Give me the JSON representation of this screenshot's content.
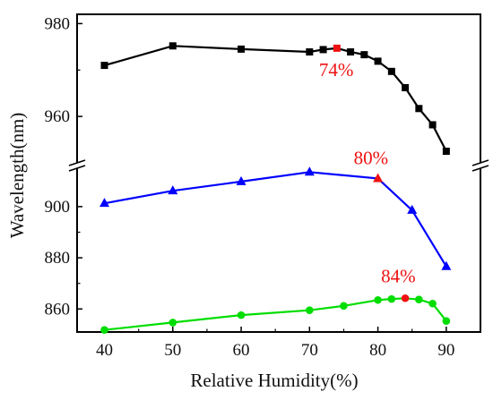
{
  "chart_data": {
    "type": "line",
    "xlabel": "Relative Humidity(%)",
    "ylabel": "Wavelength(nm)",
    "xlim": [
      36,
      95
    ],
    "x_ticks": [
      40,
      50,
      60,
      70,
      80,
      90
    ],
    "y_ticks_upper": [
      960,
      980
    ],
    "y_ticks_lower": [
      860,
      880,
      900
    ],
    "y_axis_break": {
      "lower_range": [
        851,
        915
      ],
      "upper_range": [
        950,
        982
      ]
    },
    "grid": false,
    "legend": "none",
    "series": [
      {
        "color": "#000000",
        "marker": "square",
        "x": [
          40,
          50,
          60,
          70,
          72,
          74,
          76,
          78,
          80,
          82,
          84,
          86,
          88,
          90
        ],
        "y": [
          971,
          975.2,
          974.5,
          973.9,
          974.4,
          974.7,
          973.9,
          973.3,
          971.9,
          969.7,
          966.2,
          961.7,
          958.2,
          952.5
        ],
        "highlight": {
          "x": 74,
          "y": 974.7,
          "color": "#ee1111",
          "label": "74%"
        }
      },
      {
        "color": "#0000ff",
        "marker": "triangle",
        "x": [
          40,
          50,
          60,
          70,
          80,
          85,
          90
        ],
        "y": [
          901.3,
          906.2,
          909.8,
          913.5,
          911,
          898.6,
          876.6
        ],
        "highlight": {
          "x": 80,
          "y": 911,
          "color": "#ee1111",
          "label": "80%"
        }
      },
      {
        "color": "#00dd00",
        "marker": "circle",
        "x": [
          40,
          50,
          60,
          70,
          75,
          80,
          82,
          84,
          86,
          88,
          90
        ],
        "y": [
          851.8,
          854.7,
          857.6,
          859.5,
          861.2,
          863.5,
          863.9,
          864.2,
          863.7,
          862.1,
          855.3
        ],
        "highlight": {
          "x": 84,
          "y": 864.2,
          "color": "#ee1111",
          "label": "84%"
        }
      }
    ]
  }
}
